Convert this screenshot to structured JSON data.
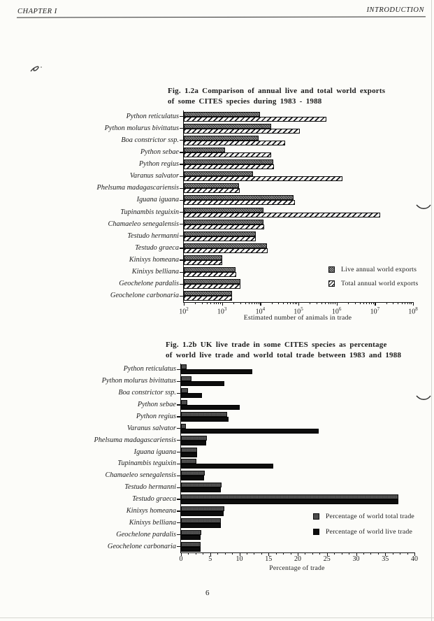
{
  "page": {
    "header_left": "CHAPTER I",
    "header_right": "INTRODUCTION",
    "page_number": "6"
  },
  "colors": {
    "ink": "#1b1b1b",
    "paper": "#fcfcf9"
  },
  "chart_data": [
    {
      "type": "bar",
      "orientation": "horizontal",
      "title_line1": "Fig. 1.2a Comparison of annual live and total world exports",
      "title_line2": "of some CITES species during 1983 - 1988",
      "xlabel": "Estimated number of animals in trade",
      "x_scale": "log",
      "x_log_range": [
        2,
        8
      ],
      "x_tick_exponents": [
        2,
        3,
        4,
        5,
        6,
        7,
        8
      ],
      "grid": false,
      "legend_position": "right-middle",
      "categories": [
        "Python reticulatus",
        "Python molurus bivittatus",
        "Boa constrictor ssp.",
        "Python sebae",
        "Python regius",
        "Varanus salvator",
        "Phelsuma madagascariensis",
        "Iguana iguana",
        "Tupinambis teguixin",
        "Chamaeleo senegalensis",
        "Testudo hermanni",
        "Testudo graeca",
        "Kinixys homeana",
        "Kinixys belliana",
        "Geochelone pardalis",
        "Geochelone carbonaria"
      ],
      "series": [
        {
          "name": "Live annual world exports",
          "values": [
            10000,
            19000,
            9000,
            1200,
            22000,
            6500,
            2800,
            75000,
            12000,
            12000,
            7800,
            15000,
            1000,
            2300,
            3000,
            1800
          ]
        },
        {
          "name": "Total annual world exports",
          "values": [
            550000,
            110000,
            45000,
            19000,
            23000,
            1400000,
            2900,
            80000,
            14000000,
            12500,
            7800,
            15500,
            1000,
            2400,
            3000,
            1800
          ]
        }
      ]
    },
    {
      "type": "bar",
      "orientation": "horizontal",
      "title_line1": "Fig. 1.2b UK live trade in some CITES species as percentage",
      "title_line2": "of world live trade and world total trade between 1983 and 1988",
      "xlabel": "Percentage of trade",
      "x_scale": "linear",
      "xlim": [
        0,
        40
      ],
      "x_ticks": [
        0,
        5,
        10,
        15,
        20,
        25,
        30,
        35,
        40
      ],
      "grid": false,
      "legend_position": "right-middle",
      "categories": [
        "Python reticulatus",
        "Python molurus bivittatus",
        "Boa constrictor ssp.",
        "Python sebae",
        "Python regius",
        "Varanus salvator",
        "Phelsuma madagascariensis",
        "Iguana iguana",
        "Tupinambis teguixin",
        "Chamaeleo senegalensis",
        "Testudo hermanni",
        "Testudo graeca",
        "Kinixys homeana",
        "Kinixys belliana",
        "Geochelone pardalis",
        "Geochelone carbonaria"
      ],
      "series": [
        {
          "name": "Percentage of world total trade",
          "values": [
            1.0,
            1.8,
            1.2,
            1.1,
            7.9,
            0.8,
            4.4,
            2.8,
            2.6,
            4.1,
            6.9,
            37.2,
            7.4,
            6.8,
            3.5,
            3.4
          ]
        },
        {
          "name": "Percentage of world live trade",
          "values": [
            12.2,
            7.4,
            3.6,
            10.0,
            8.1,
            23.6,
            4.3,
            2.7,
            15.8,
            4.0,
            6.8,
            37.3,
            7.3,
            6.8,
            3.4,
            3.4
          ]
        }
      ]
    }
  ]
}
